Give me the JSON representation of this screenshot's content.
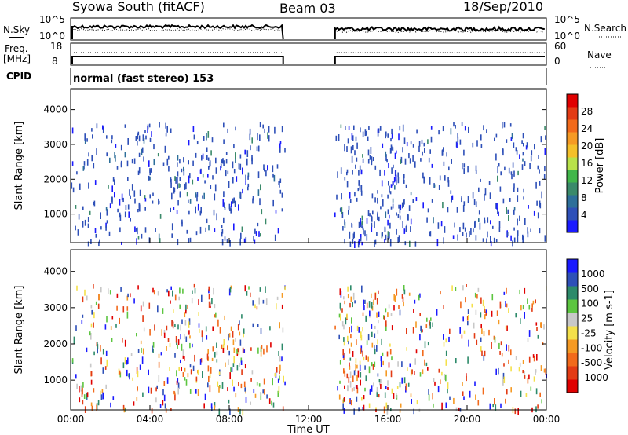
{
  "header": {
    "station": "Syowa South (fitACF)",
    "beam": "Beam 03",
    "date": "18/Sep/2010"
  },
  "labels": {
    "nsky": "N.Sky",
    "nsearch": "N.Search",
    "freq_l1": "Freq.",
    "freq_l2": "[MHz]",
    "nave": "Nave",
    "cpid": "CPID",
    "cpid_value": "normal (fast stereo) 153",
    "left_top_tick_hi": "10^5",
    "left_top_tick_lo": "10^0",
    "right_top_tick_hi": "10^5",
    "right_top_tick_lo": "10^0",
    "freq_tick_hi": "18",
    "freq_tick_lo": "8",
    "nave_tick_hi": "60",
    "nave_tick_lo": "0"
  },
  "colors": {
    "power_scale": [
      "#1a1aff",
      "#2e50b8",
      "#2d6f9a",
      "#3a8a6a",
      "#41b64a",
      "#b8e24a",
      "#f4c02a",
      "#f59a24",
      "#f26a1b",
      "#e33b14",
      "#e00000"
    ],
    "velocity_scale": [
      "#1a1aff",
      "#2e50b8",
      "#2d8a6a",
      "#5cc540",
      "#c8c8c8",
      "#f4e04a",
      "#f59a24",
      "#f26a1b",
      "#e33b14",
      "#e00000"
    ],
    "noise_line": "#000000"
  },
  "chart_data": [
    {
      "type": "heatmap",
      "title": "Power",
      "ylabel": "Slant Range [km]",
      "xlabel": "Time UT",
      "x_ticks": [
        "00:00",
        "04:00",
        "08:00",
        "12:00",
        "16:00",
        "20:00",
        "00:00"
      ],
      "y_ticks": [
        "1000",
        "2000",
        "3000",
        "4000"
      ],
      "ylim": [
        180,
        4600
      ],
      "xlim_hours": [
        0,
        24
      ],
      "colorbar_label": "Power [dB]",
      "colorbar_ticks": [
        "4",
        "8",
        "12",
        "16",
        "20",
        "24",
        "28"
      ],
      "data_gap_hours": [
        10.8,
        13.3
      ]
    },
    {
      "type": "heatmap",
      "title": "Velocity",
      "ylabel": "Slant Range [km]",
      "xlabel": "Time UT",
      "x_ticks": [
        "00:00",
        "04:00",
        "08:00",
        "12:00",
        "16:00",
        "20:00",
        "00:00"
      ],
      "y_ticks": [
        "1000",
        "2000",
        "3000",
        "4000"
      ],
      "ylim": [
        180,
        4600
      ],
      "xlim_hours": [
        0,
        24
      ],
      "colorbar_label": "Velocity [m s-1]",
      "colorbar_ticks": [
        "1000",
        "500",
        "100",
        "25",
        "-25",
        "-100",
        "-500",
        "-1000"
      ],
      "data_gap_hours": [
        10.8,
        13.3
      ]
    }
  ],
  "axis_title": "Time UT"
}
